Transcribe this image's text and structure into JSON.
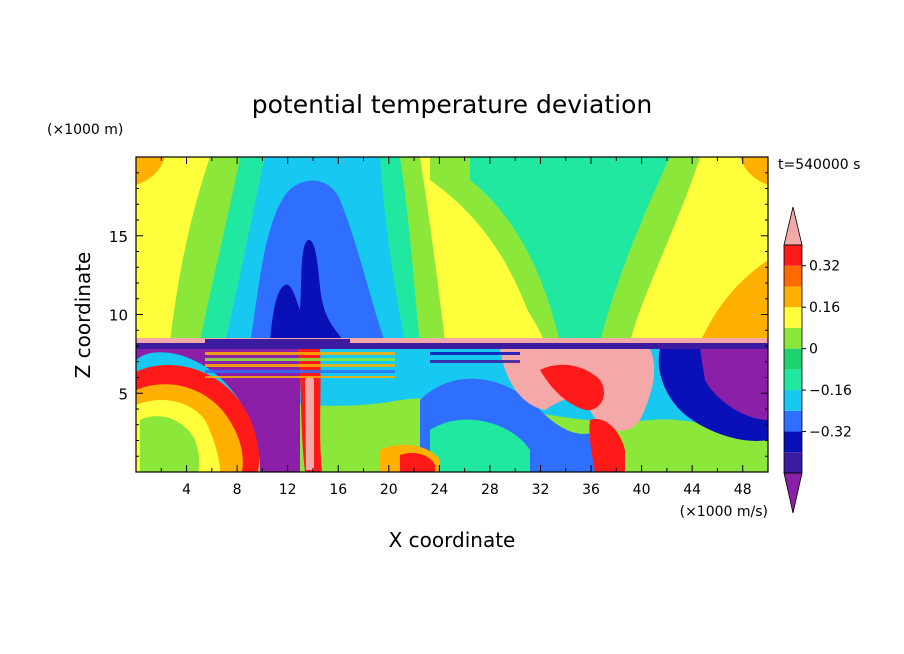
{
  "chart_data": {
    "type": "heatmap",
    "title": "potential temperature deviation",
    "time_label": "t=540000 s",
    "xlabel": "X coordinate",
    "ylabel": "Z coordinate",
    "x_unit": "(×1000 m/s)",
    "y_unit": "(×1000 m)",
    "xlim": [
      0,
      50
    ],
    "ylim": [
      0,
      20
    ],
    "x_ticks": [
      4,
      8,
      12,
      16,
      20,
      24,
      28,
      32,
      36,
      40,
      44,
      48
    ],
    "y_ticks": [
      5,
      10,
      15
    ],
    "colorbar": {
      "levels": [
        -0.48,
        -0.4,
        -0.32,
        -0.24,
        -0.16,
        -0.08,
        0,
        0.08,
        0.16,
        0.24,
        0.32,
        0.4
      ],
      "tick_labels": [
        "0.32",
        "0.16",
        "0",
        "−0.16",
        "−0.32"
      ],
      "tick_values": [
        0.32,
        0.16,
        0,
        -0.16,
        -0.32
      ],
      "colors": [
        "#8B1FA8",
        "#3D1BA0",
        "#0A10B8",
        "#2E6FFF",
        "#17C8F0",
        "#20E8A0",
        "#1ED36E",
        "#8BE83A",
        "#FFFF3C",
        "#FFB000",
        "#FF6A00",
        "#FF1A1A",
        "#F5A8A8"
      ],
      "extend": "both"
    },
    "grid": false
  }
}
